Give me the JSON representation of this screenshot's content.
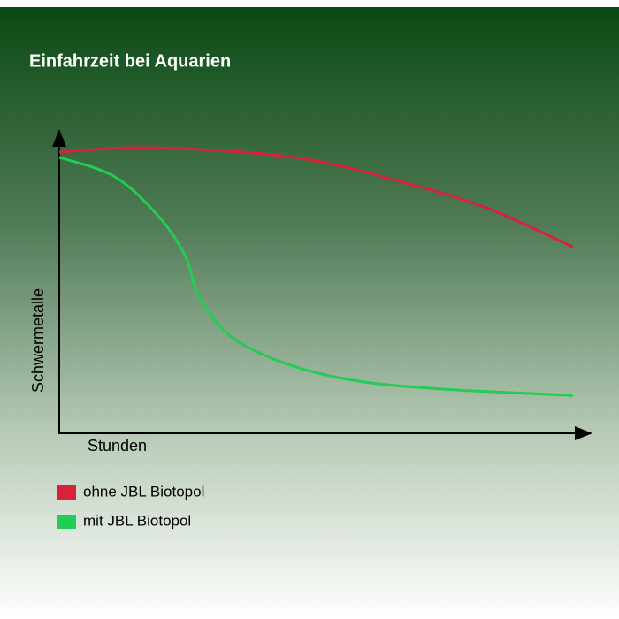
{
  "chart_data": {
    "type": "line",
    "title": "Einfahrzeit bei Aquarien",
    "x_label": "Stunden",
    "y_label": "Schwermetalle",
    "xlim": [
      0,
      100
    ],
    "ylim": [
      0,
      100
    ],
    "series": [
      {
        "name": "ohne JBL Biotopol",
        "color": "#d9223a",
        "x": [
          0,
          13.8,
          30.5,
          47.2,
          63.8,
          80.5,
          96.8
        ],
        "values": [
          93.5,
          95,
          94,
          91,
          84,
          75,
          62
        ]
      },
      {
        "name": "mit JBL Biotopol",
        "color": "#22cc55",
        "x": [
          0,
          10.5,
          18.8,
          23.8,
          26.3,
          32.2,
          42.2,
          55.5,
          72.2,
          96.8
        ],
        "values": [
          91.8,
          85.3,
          72,
          58.8,
          45.6,
          32.4,
          23.5,
          17.6,
          14.7,
          12.6
        ]
      }
    ]
  }
}
